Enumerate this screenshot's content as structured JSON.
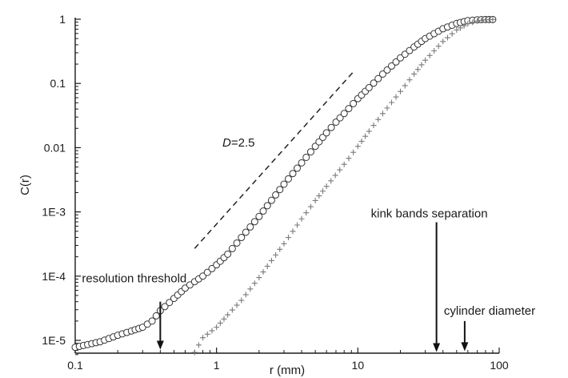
{
  "chart_data": {
    "type": "scatter",
    "x_scale": "log",
    "y_scale": "log",
    "xlim": [
      0.1,
      100
    ],
    "ylim": [
      5e-06,
      1
    ],
    "xlabel": "r (mm)",
    "ylabel": "C(r)",
    "grid": false,
    "x_ticks": [
      {
        "value": 0.1,
        "label": "0.1"
      },
      {
        "value": 1,
        "label": "1"
      },
      {
        "value": 10,
        "label": "10"
      },
      {
        "value": 100,
        "label": "100"
      }
    ],
    "y_ticks": [
      {
        "value": 1e-05,
        "label": "1E-5"
      },
      {
        "value": 0.0001,
        "label": "1E-4"
      },
      {
        "value": 0.001,
        "label": "1E-3"
      },
      {
        "value": 0.01,
        "label": "0.01"
      },
      {
        "value": 0.1,
        "label": "0.1"
      },
      {
        "value": 1,
        "label": "1"
      }
    ],
    "series": [
      {
        "marker": "open-circle",
        "x": [
          0.1,
          0.15,
          0.2,
          0.25,
          0.3,
          0.35,
          0.4,
          0.5,
          0.6,
          0.7,
          0.8,
          1,
          1.2,
          1.5,
          2,
          3,
          4,
          5,
          6,
          7,
          8,
          10,
          12,
          15,
          20,
          25,
          30,
          40,
          50,
          60,
          70,
          80,
          90
        ],
        "y": [
          7.8e-06,
          9.5e-06,
          1.2e-05,
          1.4e-05,
          1.6e-05,
          2e-05,
          2.9e-05,
          4.5e-05,
          6.5e-05,
          8.2e-05,
          0.0001,
          0.00015,
          0.00022,
          0.0004,
          0.00085,
          0.0027,
          0.0058,
          0.0105,
          0.017,
          0.025,
          0.034,
          0.058,
          0.086,
          0.14,
          0.25,
          0.37,
          0.5,
          0.71,
          0.86,
          0.95,
          0.98,
          0.99,
          0.99
        ]
      },
      {
        "marker": "plus",
        "x": [
          0.7,
          0.8,
          1,
          1.2,
          1.5,
          2,
          3,
          4,
          5,
          6,
          8,
          10,
          12,
          15,
          20,
          25,
          30,
          40,
          50,
          60,
          70,
          80,
          90
        ],
        "y": [
          6.5e-06,
          1.1e-05,
          1.6e-05,
          2.5e-05,
          4.2e-05,
          9.5e-05,
          0.00032,
          0.00078,
          0.0015,
          0.0025,
          0.0055,
          0.0105,
          0.018,
          0.034,
          0.075,
          0.14,
          0.23,
          0.45,
          0.68,
          0.85,
          0.94,
          0.98,
          0.99
        ]
      }
    ],
    "reference_line": {
      "label_prefix": "D",
      "label_suffix": "=2.5",
      "x": [
        0.7,
        9.5
      ],
      "y": [
        0.00027,
        0.16
      ]
    },
    "annotations": [
      {
        "text": "resolution threshold",
        "arrow_x": 0.4,
        "arrow_from_y": 4e-05,
        "arrow_to_y": 7.2e-06
      },
      {
        "text": "kink bands separation",
        "arrow_x": 36,
        "arrow_from_y": 0.00069,
        "arrow_to_y": 6.6e-06
      },
      {
        "text": "cylinder diameter",
        "arrow_x": 57,
        "arrow_from_y": 2e-05,
        "arrow_to_y": 6.8e-06
      }
    ]
  }
}
